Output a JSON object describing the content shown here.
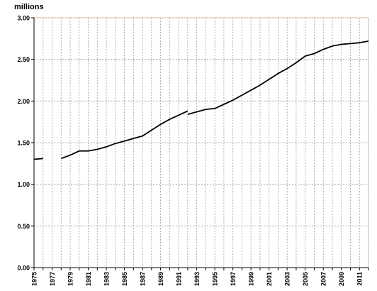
{
  "chart_data": {
    "type": "line",
    "unit_label": "millions",
    "ylim": [
      0,
      3.0
    ],
    "xlim": [
      1975,
      2012
    ],
    "y_ticks": [
      "0.00",
      "0.50",
      "1.00",
      "1.50",
      "2.00",
      "2.50",
      "3.00"
    ],
    "x_ticks": [
      "1975",
      "1977",
      "1979",
      "1981",
      "1983",
      "1985",
      "1987",
      "1989",
      "1991",
      "1993",
      "1995",
      "1997",
      "1999",
      "2001",
      "2003",
      "2005",
      "2007",
      "2009",
      "2011"
    ],
    "grid": true,
    "colors": {
      "line": "#000000",
      "grid": "#9a9a9a",
      "frame": "#f2c9a8",
      "axis": "#000000"
    },
    "segments": [
      {
        "x": [
          1975,
          1976
        ],
        "y": [
          1.3,
          1.31
        ]
      },
      {
        "x": [
          1978,
          1979,
          1980,
          1981,
          1982,
          1983,
          1984,
          1985,
          1986,
          1987,
          1988,
          1989,
          1990,
          1991,
          1992
        ],
        "y": [
          1.31,
          1.35,
          1.4,
          1.4,
          1.42,
          1.45,
          1.49,
          1.52,
          1.55,
          1.58,
          1.65,
          1.72,
          1.78,
          1.83,
          1.88
        ]
      },
      {
        "x": [
          1992,
          1993,
          1994,
          1995,
          1996,
          1997,
          1998,
          1999,
          2000,
          2001,
          2002,
          2003,
          2004,
          2005,
          2006,
          2007,
          2008,
          2009,
          2010,
          2011,
          2012
        ],
        "y": [
          1.84,
          1.87,
          1.9,
          1.91,
          1.96,
          2.01,
          2.07,
          2.13,
          2.19,
          2.26,
          2.33,
          2.39,
          2.46,
          2.54,
          2.57,
          2.62,
          2.66,
          2.68,
          2.69,
          2.7,
          2.72
        ]
      }
    ]
  }
}
